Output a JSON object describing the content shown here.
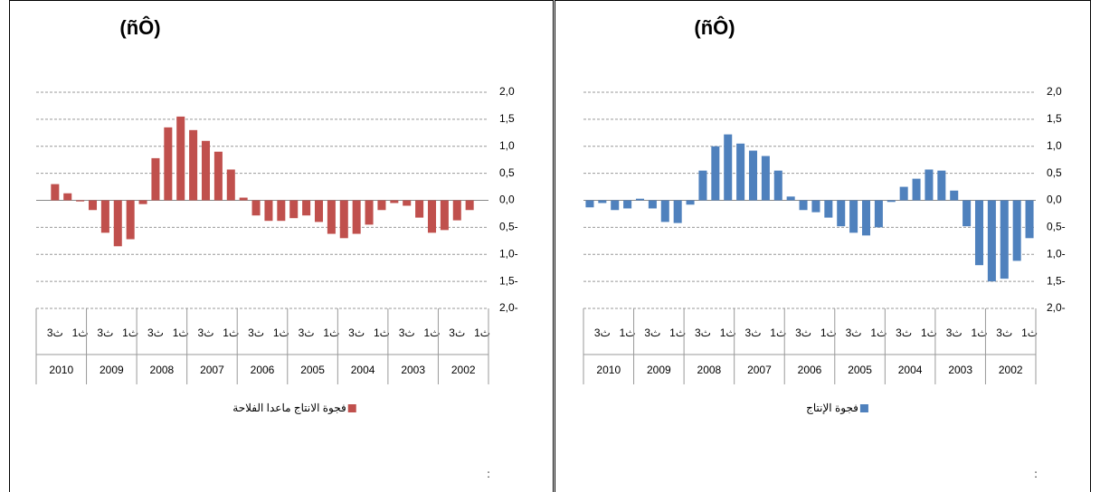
{
  "chart_data": [
    {
      "type": "bar",
      "title": "(ñÔ)",
      "legend": "فجوة الانتاج ماعدا الفلاحة",
      "note": ":",
      "color": "#c0504d",
      "categories": [
        "1ث",
        null,
        "3ث",
        null,
        "1ث",
        null,
        "3ث",
        null,
        "1ث",
        null,
        "3ث",
        null,
        "1ث",
        null,
        "3ث",
        null,
        "1ث",
        null,
        "3ث",
        null,
        "1ث",
        null,
        "3ث",
        null,
        "1ث",
        null,
        "3ث",
        null,
        "1ث",
        null,
        "3ث",
        null,
        "1ث",
        null,
        "3ث",
        null
      ],
      "years": [
        "2002",
        "2003",
        "2004",
        "2005",
        "2006",
        "2007",
        "2008",
        "2009",
        "2010"
      ],
      "values": [
        null,
        -0.18,
        -0.37,
        -0.55,
        -0.6,
        -0.32,
        -0.1,
        -0.05,
        -0.18,
        -0.45,
        -0.62,
        -0.7,
        -0.62,
        -0.4,
        -0.28,
        -0.33,
        -0.38,
        -0.38,
        -0.28,
        0.05,
        0.57,
        0.9,
        1.1,
        1.3,
        1.55,
        1.35,
        0.78,
        -0.07,
        -0.72,
        -0.85,
        -0.6,
        -0.18,
        -0.02,
        0.13,
        0.3,
        null
      ],
      "ylim": [
        -2,
        2
      ],
      "yticks": [
        {
          "value": -2,
          "label": "2,0-"
        },
        {
          "value": -1.5,
          "label": "1,5-"
        },
        {
          "value": -1,
          "label": "1,0-"
        },
        {
          "value": -0.5,
          "label": "0,5-"
        },
        {
          "value": 0,
          "label": "0,0"
        },
        {
          "value": 0.5,
          "label": "0,5"
        },
        {
          "value": 1,
          "label": "1,0"
        },
        {
          "value": 1.5,
          "label": "1,5"
        },
        {
          "value": 2,
          "label": "2,0"
        }
      ],
      "grid": true
    },
    {
      "type": "bar",
      "title": "(ñÔ)",
      "legend": "فجوة الإنتاج",
      "note": ":",
      "color": "#4f81bd",
      "categories": [
        "1ث",
        null,
        "3ث",
        null,
        "1ث",
        null,
        "3ث",
        null,
        "1ث",
        null,
        "3ث",
        null,
        "1ث",
        null,
        "3ث",
        null,
        "1ث",
        null,
        "3ث",
        null,
        "1ث",
        null,
        "3ث",
        null,
        "1ث",
        null,
        "3ث",
        null,
        "1ث",
        null,
        "3ث",
        null,
        "1ث",
        null,
        "3ث",
        null
      ],
      "years": [
        "2002",
        "2003",
        "2004",
        "2005",
        "2006",
        "2007",
        "2008",
        "2009",
        "2010"
      ],
      "values": [
        -0.7,
        -1.12,
        -1.45,
        -1.5,
        -1.2,
        -0.48,
        0.18,
        0.55,
        0.57,
        0.4,
        0.25,
        -0.03,
        -0.5,
        -0.65,
        -0.6,
        -0.48,
        -0.32,
        -0.22,
        -0.18,
        0.07,
        0.55,
        0.82,
        0.92,
        1.05,
        1.22,
        1.0,
        0.55,
        -0.08,
        -0.42,
        -0.4,
        -0.15,
        0.03,
        -0.15,
        -0.18,
        -0.05,
        -0.13
      ],
      "ylim": [
        -2,
        2
      ],
      "yticks": [
        {
          "value": -2,
          "label": "2,0-"
        },
        {
          "value": -1.5,
          "label": "1,5-"
        },
        {
          "value": -1,
          "label": "1,0-"
        },
        {
          "value": -0.5,
          "label": "0,5-"
        },
        {
          "value": 0,
          "label": "0,0"
        },
        {
          "value": 0.5,
          "label": "0,5"
        },
        {
          "value": 1,
          "label": "1,0"
        },
        {
          "value": 1.5,
          "label": "1,5"
        },
        {
          "value": 2,
          "label": "2,0"
        }
      ],
      "grid": true
    }
  ]
}
